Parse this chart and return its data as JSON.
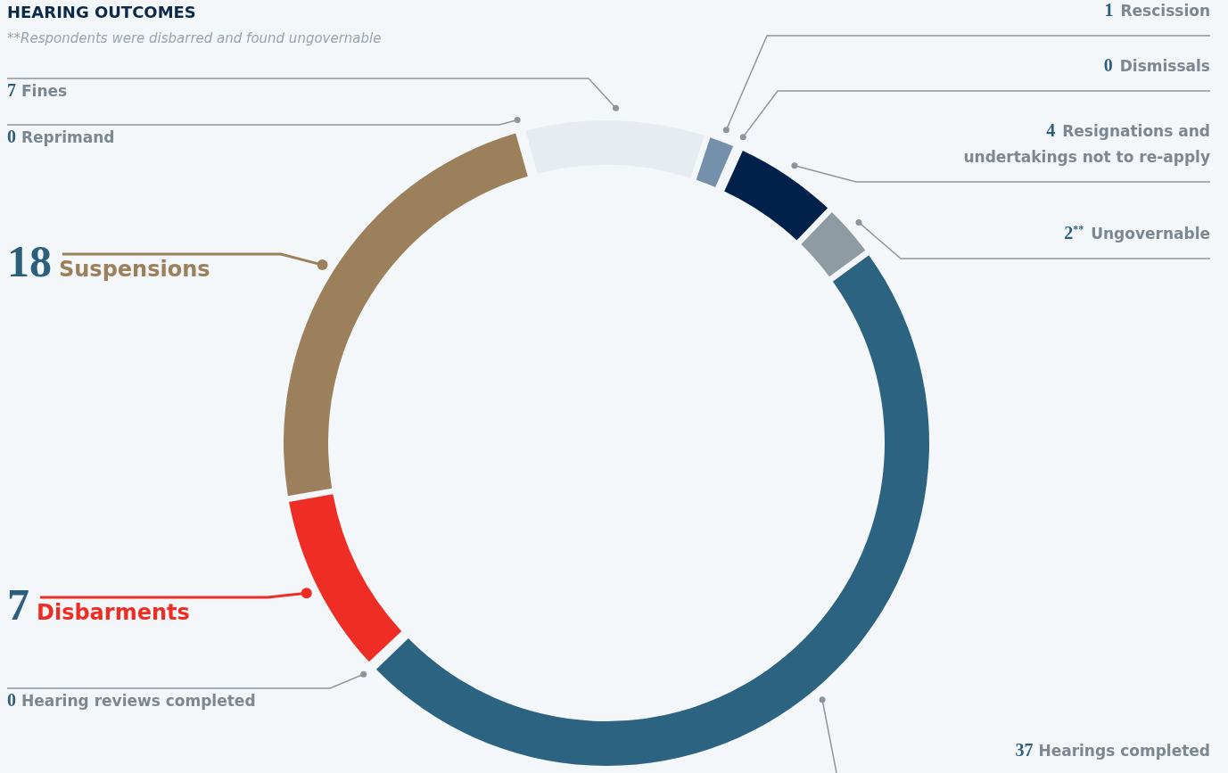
{
  "chart_data": {
    "type": "donut",
    "title": "HEARING OUTCOMES",
    "subtitle": "**Respondents were disbarred and found ungovernable",
    "categories": [
      "Fines",
      "Rescission",
      "Dismissals",
      "Resignations and undertakings not to re-apply",
      "Ungovernable",
      "Hearings completed",
      "Hearing reviews completed",
      "Disbarments",
      "Suspensions",
      "Reprimand"
    ],
    "values": [
      7,
      1,
      0,
      4,
      2,
      37,
      0,
      7,
      18,
      0
    ],
    "value_labels": [
      "7",
      "1",
      "0",
      "4",
      "2$^{**}$",
      "37",
      "0",
      "7",
      "18",
      "0"
    ],
    "colors": [
      "#e6ecf2",
      "#7590aa",
      "#b0bcc6",
      "#00224a",
      "#8f9ba3",
      "#2c6380",
      "#b0bcc6",
      "#ee2e24",
      "#9b805b",
      "#b0bcc6"
    ]
  }
}
